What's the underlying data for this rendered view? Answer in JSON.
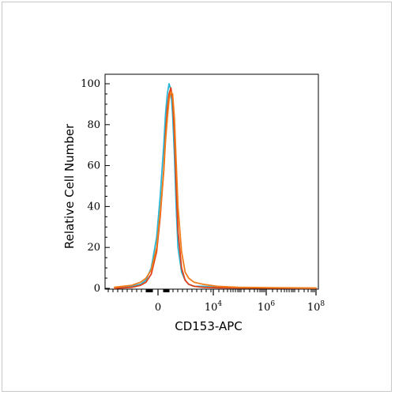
{
  "chart_data": {
    "type": "line",
    "title": "",
    "xlabel": "CD153-APC",
    "ylabel": "Relative Cell Number",
    "ylim": [
      0,
      100
    ],
    "x_scale": "biexponential",
    "x_tick_labels": [
      {
        "base": "0",
        "exp": ""
      },
      {
        "base": "10",
        "exp": "4"
      },
      {
        "base": "10",
        "exp": "6"
      },
      {
        "base": "10",
        "exp": "8"
      }
    ],
    "y_ticks": [
      0,
      20,
      40,
      60,
      80,
      100
    ],
    "grid": false,
    "legend": "none",
    "series": [
      {
        "color": "#2ab7d6",
        "x": [
          -30,
          -20,
          -15,
          -12,
          -9,
          -6,
          -4,
          -2,
          -1,
          0,
          1,
          2,
          3,
          4,
          5,
          6,
          8,
          10,
          12,
          15,
          20,
          28,
          40,
          60,
          84
        ],
        "y": [
          0,
          1,
          2,
          4,
          10,
          25,
          45,
          70,
          85,
          95,
          100,
          97,
          85,
          65,
          40,
          20,
          8,
          4,
          2,
          1,
          1,
          0.5,
          0.3,
          0.2,
          0
        ]
      },
      {
        "color": "#e0401a",
        "x": [
          -30,
          -20,
          -15,
          -12,
          -9,
          -6,
          -4,
          -2,
          -1,
          0,
          1,
          2,
          3,
          4,
          5,
          6,
          8,
          10,
          12,
          15,
          20,
          28,
          40,
          60,
          84
        ],
        "y": [
          0,
          0.5,
          1.5,
          3,
          7,
          18,
          35,
          58,
          75,
          88,
          95,
          98,
          92,
          75,
          50,
          28,
          10,
          4,
          2,
          1,
          0.5,
          0.3,
          0.2,
          0.1,
          0
        ]
      },
      {
        "color": "#f07d1a",
        "x": [
          -30,
          -20,
          -15,
          -12,
          -9,
          -6,
          -4,
          -2,
          -1,
          0,
          1,
          2,
          3,
          4,
          5,
          6,
          8,
          10,
          12,
          15,
          20,
          28,
          40,
          60,
          84
        ],
        "y": [
          0.5,
          1.5,
          3,
          5,
          9,
          20,
          37,
          57,
          72,
          83,
          92,
          96,
          95,
          83,
          62,
          40,
          18,
          8,
          5,
          3,
          2,
          1,
          0.5,
          0.3,
          0.2
        ]
      }
    ]
  }
}
